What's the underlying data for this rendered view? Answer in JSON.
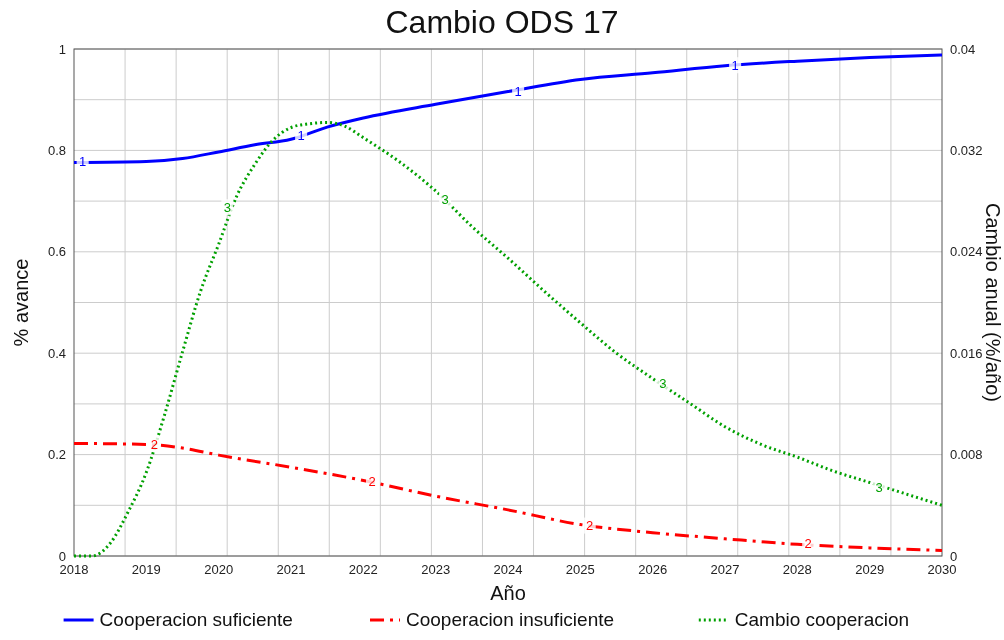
{
  "chart_data": {
    "type": "line",
    "title": "Cambio ODS 17",
    "xlabel": "Año",
    "ylabel": "% avance",
    "y2label": "Cambio anual (%/año)",
    "xlim": [
      2018,
      2030
    ],
    "xticks": [
      2018,
      2019,
      2020,
      2021,
      2022,
      2023,
      2024,
      2025,
      2026,
      2027,
      2028,
      2029,
      2030,
      {
        "value": 2018.706,
        "label": null
      },
      {
        "value": 2019.412,
        "label": null
      },
      {
        "value": 2020.118,
        "label": null
      },
      {
        "value": 2020.824,
        "label": null
      },
      {
        "value": 2021.529,
        "label": null
      },
      {
        "value": 2022.235,
        "label": null
      },
      {
        "value": 2022.941,
        "label": null
      },
      {
        "value": 2023.647,
        "label": null
      },
      {
        "value": 2024.353,
        "label": null
      },
      {
        "value": 2025.059,
        "label": null
      },
      {
        "value": 2025.765,
        "label": null
      },
      {
        "value": 2026.471,
        "label": null
      },
      {
        "value": 2027.176,
        "label": null
      },
      {
        "value": 2027.882,
        "label": null
      },
      {
        "value": 2028.588,
        "label": null
      },
      {
        "value": 2029.294,
        "label": null
      }
    ],
    "ylim": [
      0,
      1
    ],
    "yticks": [
      0,
      {
        "value": 0.1,
        "label": null
      },
      0.2,
      {
        "value": 0.3,
        "label": null
      },
      0.4,
      {
        "value": 0.5,
        "label": null
      },
      0.6,
      {
        "value": 0.7,
        "label": null
      },
      0.8,
      {
        "value": 0.9,
        "label": null
      },
      1
    ],
    "y2lim": [
      0,
      0.04
    ],
    "y2ticks": [
      0,
      0.008,
      0.016,
      0.024,
      0.032,
      0.04
    ],
    "grid": true,
    "legend": "bottom",
    "series": [
      {
        "name": "Cooperacion suficiente",
        "color": "#0000ff",
        "line_style": "solid",
        "x": [
          2018,
          2019,
          2019.5,
          2020,
          2020.5,
          2021,
          2021.5,
          2022,
          2023,
          2024,
          2025,
          2026,
          2027,
          2028,
          2029,
          2030
        ],
        "values": [
          0.776,
          0.778,
          0.784,
          0.797,
          0.811,
          0.822,
          0.846,
          0.864,
          0.891,
          0.916,
          0.94,
          0.953,
          0.967,
          0.976,
          0.983,
          0.988
        ]
      },
      {
        "name": "Cooperacion insuficiente",
        "color": "#ff0000",
        "line_style": "dashed",
        "x": [
          2018,
          2019,
          2019.5,
          2020,
          2021,
          2022,
          2023,
          2024,
          2025,
          2026,
          2027,
          2028,
          2029,
          2030
        ],
        "values": [
          0.222,
          0.22,
          0.213,
          0.199,
          0.175,
          0.149,
          0.118,
          0.091,
          0.062,
          0.046,
          0.034,
          0.023,
          0.016,
          0.011
        ]
      },
      {
        "name": "Cambio cooperacion",
        "color": "#00a000",
        "line_style": "dotted",
        "axis": "y2",
        "x": [
          2018,
          2018.25,
          2018.5,
          2018.75,
          2019,
          2019.25,
          2019.5,
          2019.75,
          2020,
          2020.25,
          2020.5,
          2020.75,
          2021,
          2021.25,
          2021.5,
          2021.75,
          2022,
          2022.5,
          2023,
          2023.5,
          2024,
          2024.5,
          2025,
          2025.5,
          2026,
          2026.5,
          2027,
          2027.5,
          2028,
          2028.5,
          2029,
          2029.5,
          2030
        ],
        "values": [
          0,
          0,
          0.001,
          0.0035,
          0.0066,
          0.0111,
          0.0161,
          0.0209,
          0.0246,
          0.0284,
          0.0309,
          0.0328,
          0.0338,
          0.0341,
          0.0342,
          0.0339,
          0.033,
          0.0311,
          0.0288,
          0.026,
          0.0235,
          0.0209,
          0.0184,
          0.016,
          0.014,
          0.0121,
          0.0102,
          0.0088,
          0.0078,
          0.0067,
          0.0058,
          0.0049,
          0.004
        ]
      }
    ],
    "annotations": [
      {
        "text": "1",
        "x": 2018.12,
        "y": 0.778
      },
      {
        "text": "1",
        "x": 2021.14,
        "y": 0.83
      },
      {
        "text": "1",
        "x": 2024.14,
        "y": 0.917
      },
      {
        "text": "1",
        "x": 2027.14,
        "y": 0.968
      },
      {
        "text": "2",
        "x": 2019.11,
        "y": 0.221
      },
      {
        "text": "2",
        "x": 2022.12,
        "y": 0.148
      },
      {
        "text": "2",
        "x": 2025.13,
        "y": 0.06
      },
      {
        "text": "2",
        "x": 2028.15,
        "y": 0.024
      },
      {
        "text": "3",
        "x": 2020.12,
        "y": 0.688
      },
      {
        "text": "3",
        "x": 2023.13,
        "y": 0.704
      },
      {
        "text": "3",
        "x": 2026.14,
        "y": 0.341
      },
      {
        "text": "3",
        "x": 2029.13,
        "y": 0.136
      }
    ]
  }
}
